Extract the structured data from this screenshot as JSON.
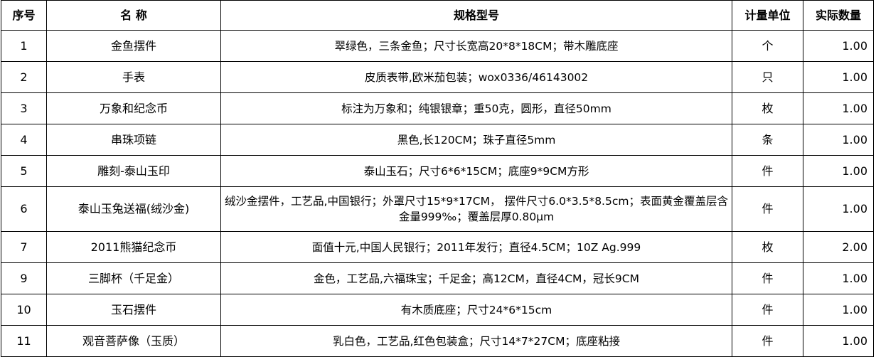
{
  "headers": [
    "序号",
    "名 称",
    "规格型号",
    "计量单位",
    "实际数量"
  ],
  "rows": [
    {
      "no": "1",
      "name": "金鱼摆件",
      "spec": "翠绿色，三条金鱼；尺寸长宽高20*8*18CM；带木雕底座",
      "unit": "个",
      "qty": "1.00"
    },
    {
      "no": "2",
      "name": "手表",
      "spec": "皮质表带,欧米茄包装；wox0336/46143002",
      "unit": "只",
      "qty": "1.00"
    },
    {
      "no": "3",
      "name": "万象和纪念币",
      "spec": "标注为万象和；纯银银章；重50克，圆形，直径50mm",
      "unit": "枚",
      "qty": "1.00"
    },
    {
      "no": "4",
      "name": "串珠项链",
      "spec": "黑色,长120CM；珠子直径5mm",
      "unit": "条",
      "qty": "1.00"
    },
    {
      "no": "5",
      "name": "雕刻-泰山玉印",
      "spec": "泰山玉石；尺寸6*6*15CM；底座9*9CM方形",
      "unit": "件",
      "qty": "1.00"
    },
    {
      "no": "6",
      "name": "泰山玉兔送福(绒沙金)",
      "spec": "绒沙金摆件，工艺品,中国银行；外罩尺寸15*9*17CM， 摆件尺寸6.0*3.5*8.5cm；表面黄金覆盖层含金量999‰；覆盖层厚0.80μm",
      "unit": "件",
      "qty": "1.00"
    },
    {
      "no": "7",
      "name": "2011熊猫纪念币",
      "spec": "面值十元,中国人民银行；2011年发行；直径4.5CM；10Z Ag.999",
      "unit": "枚",
      "qty": "2.00"
    },
    {
      "no": "9",
      "name": "三脚杯（千足金）",
      "spec": "金色，工艺品,六福珠宝；千足金；高12CM，直径4CM，冠长9CM",
      "unit": "件",
      "qty": "1.00"
    },
    {
      "no": "10",
      "name": "玉石摆件",
      "spec": "有木质底座；尺寸24*6*15cm",
      "unit": "件",
      "qty": "1.00"
    },
    {
      "no": "11",
      "name": "观音菩萨像（玉质）",
      "spec": "乳白色，工艺品,红色包装盒；尺寸14*7*27CM；底座粘接",
      "unit": "件",
      "qty": "1.00"
    }
  ]
}
